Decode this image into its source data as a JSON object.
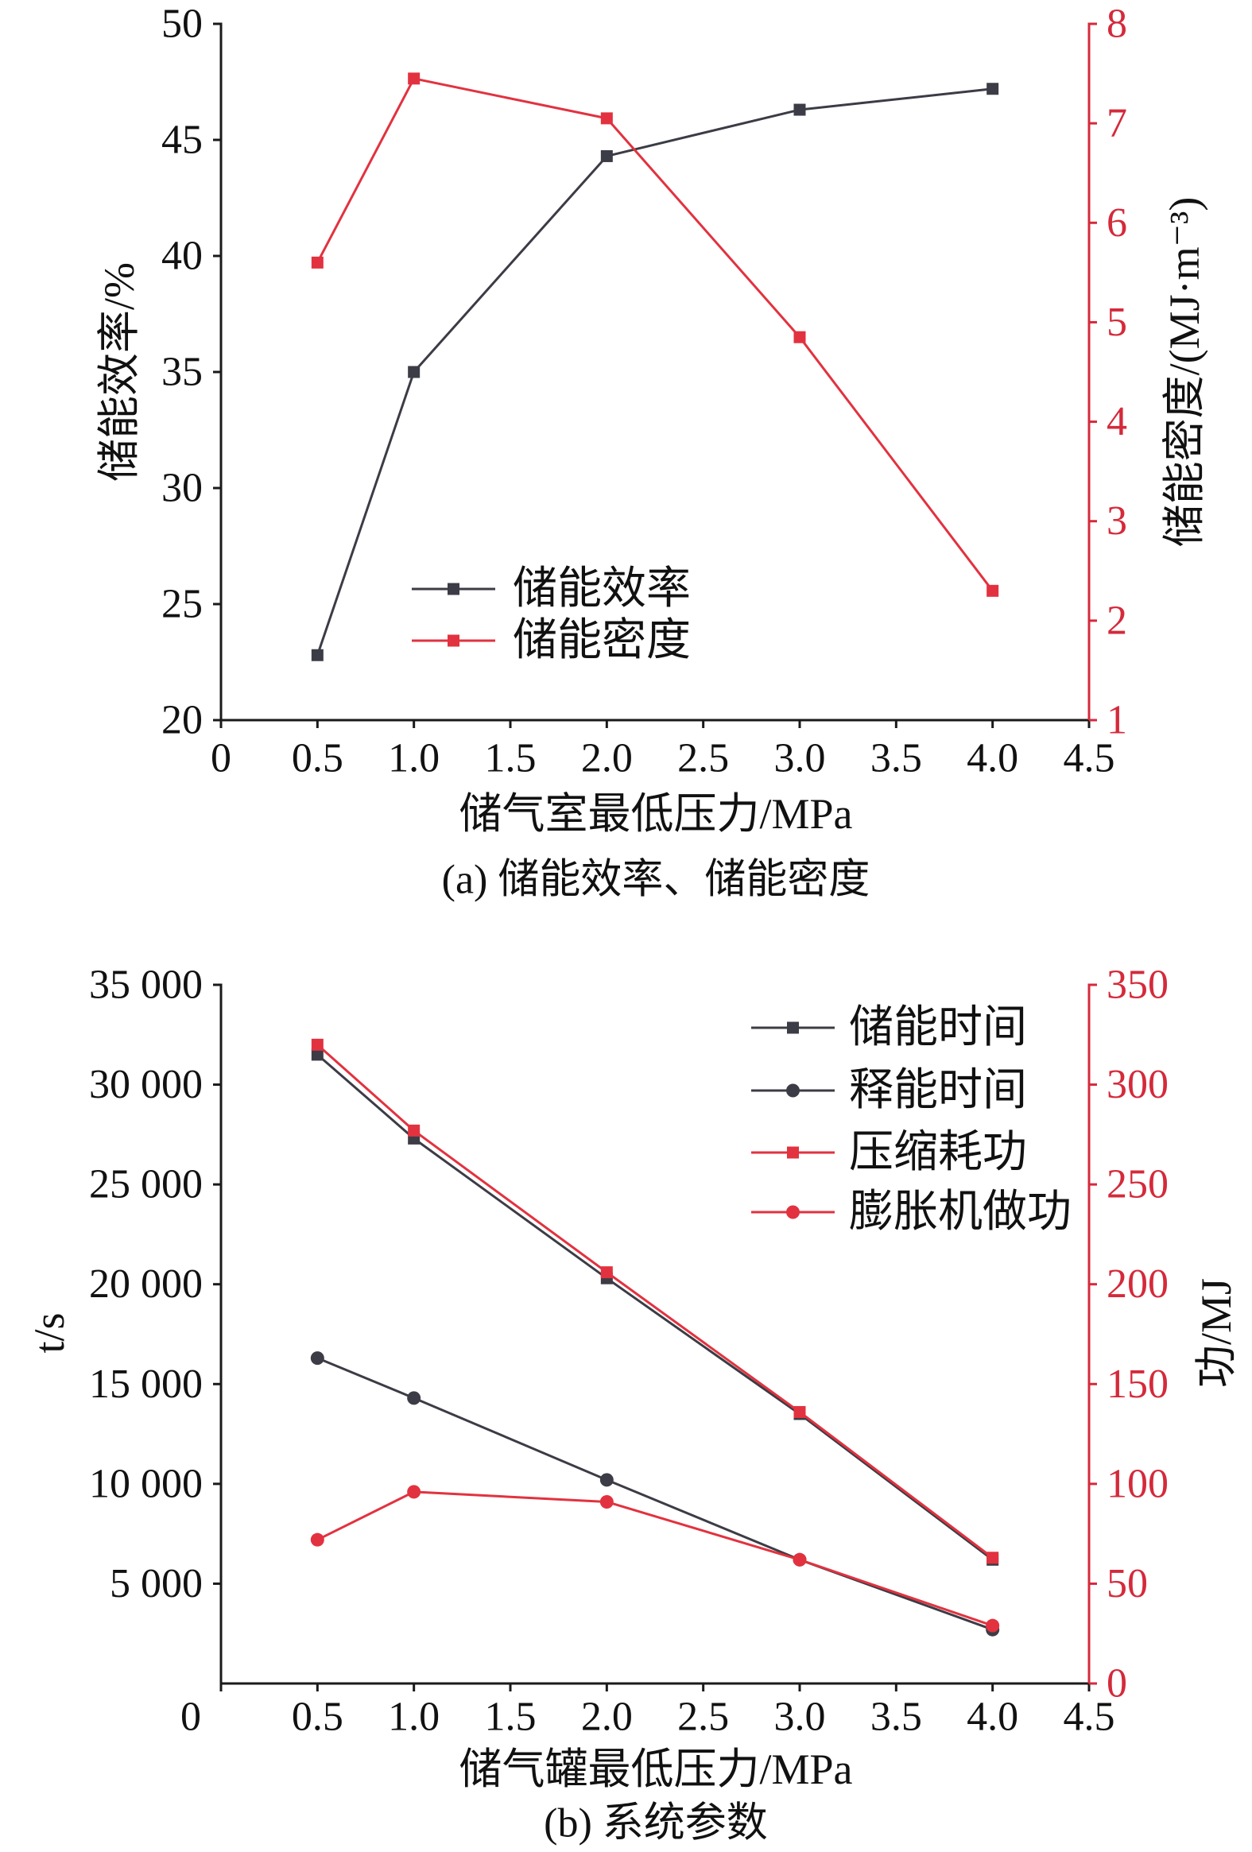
{
  "chart_data": [
    {
      "type": "line",
      "caption": "(a) 储能效率、储能密度",
      "xlabel": "储气室最低压力/MPa",
      "ylabel": "储能效率/%",
      "ylabel_right": "储能密度/(MJ·m⁻³)",
      "xlim": [
        0,
        4.5
      ],
      "xticks": [
        0,
        0.5,
        1.0,
        1.5,
        2.0,
        2.5,
        3.0,
        3.5,
        4.0,
        4.5
      ],
      "xtick_labels": [
        "0",
        "0.5",
        "1.0",
        "1.5",
        "2.0",
        "2.5",
        "3.0",
        "3.5",
        "4.0",
        "4.5"
      ],
      "ylim": [
        20,
        50
      ],
      "yticks": [
        20,
        25,
        30,
        35,
        40,
        45,
        50
      ],
      "ytick_labels": [
        "20",
        "25",
        "30",
        "35",
        "40",
        "45",
        "50"
      ],
      "ylim_right": [
        1,
        8
      ],
      "yticks_right": [
        1,
        2,
        3,
        4,
        5,
        6,
        7,
        8
      ],
      "ytick_labels_right": [
        "1",
        "2",
        "3",
        "4",
        "5",
        "6",
        "7",
        "8"
      ],
      "grid": false,
      "legend": "lower-center",
      "axis_colors": {
        "left": "#1a1a1a",
        "bottom": "#1a1a1a",
        "right": "#d42a3b"
      },
      "series": [
        {
          "name": "储能效率",
          "axis": "left",
          "marker": "square",
          "color": "#3c3c46",
          "x": [
            0.5,
            1.0,
            2.0,
            3.0,
            4.0
          ],
          "y": [
            22.8,
            35.0,
            44.3,
            46.3,
            47.2
          ]
        },
        {
          "name": "储能密度",
          "axis": "right",
          "marker": "square",
          "color": "#e2323f",
          "x": [
            0.5,
            1.0,
            2.0,
            3.0,
            4.0
          ],
          "y": [
            5.6,
            7.45,
            7.05,
            4.85,
            2.3
          ]
        }
      ]
    },
    {
      "type": "line",
      "caption": "(b) 系统参数",
      "xlabel": "储气罐最低压力/MPa",
      "ylabel": "t/s",
      "ylabel_right": "功/MJ",
      "xlim": [
        0,
        4.5
      ],
      "xticks": [
        0,
        0.5,
        1.0,
        1.5,
        2.0,
        2.5,
        3.0,
        3.5,
        4.0,
        4.5
      ],
      "xtick_labels": [
        "0",
        "0.5",
        "1.0",
        "1.5",
        "2.0",
        "2.5",
        "3.0",
        "3.5",
        "4.0",
        "4.5"
      ],
      "ylim": [
        0,
        35000
      ],
      "yticks": [
        5000,
        10000,
        15000,
        20000,
        25000,
        30000,
        35000
      ],
      "ytick_labels": [
        "5 000",
        "10 000",
        "15 000",
        "20 000",
        "25 000",
        "30 000",
        "35 000"
      ],
      "ylim_right": [
        0,
        350
      ],
      "yticks_right": [
        0,
        50,
        100,
        150,
        200,
        250,
        300,
        350
      ],
      "ytick_labels_right": [
        "0",
        "50",
        "100",
        "150",
        "200",
        "250",
        "300",
        "350"
      ],
      "grid": false,
      "legend": "top-right",
      "axis_colors": {
        "left": "#1a1a1a",
        "bottom": "#1a1a1a",
        "right": "#d42a3b"
      },
      "series": [
        {
          "name": "储能时间",
          "axis": "left",
          "marker": "square",
          "color": "#3c3c46",
          "x": [
            0.5,
            1.0,
            2.0,
            3.0,
            4.0
          ],
          "y": [
            31500,
            27300,
            20300,
            13500,
            6200
          ]
        },
        {
          "name": "释能时间",
          "axis": "left",
          "marker": "circle",
          "color": "#3c3c46",
          "x": [
            0.5,
            1.0,
            2.0,
            3.0,
            4.0
          ],
          "y": [
            16300,
            14300,
            10200,
            6200,
            2700
          ]
        },
        {
          "name": "压缩耗功",
          "axis": "right",
          "marker": "square",
          "color": "#e2323f",
          "x": [
            0.5,
            1.0,
            2.0,
            3.0,
            4.0
          ],
          "y": [
            320,
            277,
            206,
            136,
            63
          ]
        },
        {
          "name": "膨胀机做功",
          "axis": "right",
          "marker": "circle",
          "color": "#e2323f",
          "x": [
            0.5,
            1.0,
            2.0,
            3.0,
            4.0
          ],
          "y": [
            72,
            96,
            91,
            62,
            29
          ]
        }
      ]
    }
  ]
}
